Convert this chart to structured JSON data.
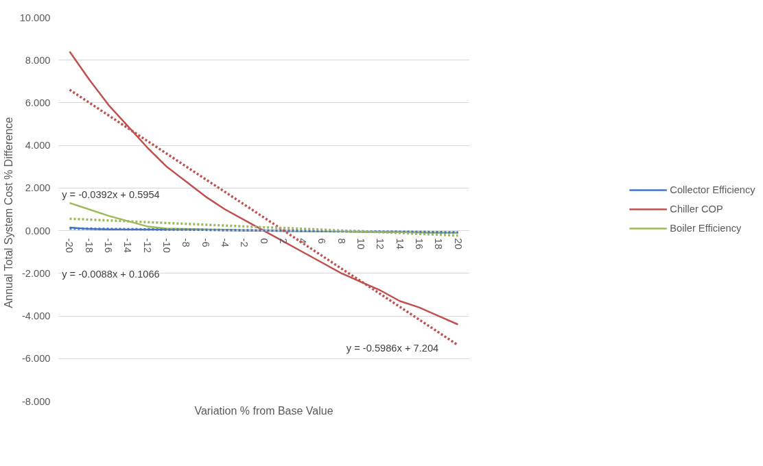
{
  "chart_data": {
    "type": "line",
    "xlabel": "Variation % from Base Value",
    "ylabel": "Annual Total System Cost  %  Difference",
    "categories": [
      "-20",
      "-18",
      "-16",
      "-14",
      "-12",
      "-10",
      "-8",
      "-6",
      "-4",
      "-2",
      "0",
      "2",
      "4",
      "6",
      "8",
      "10",
      "12",
      "14",
      "16",
      "18",
      "20"
    ],
    "series": [
      {
        "name": "Collector Efficiency",
        "color": "#4472c4",
        "values": [
          0.15,
          0.08,
          0.06,
          0.05,
          0.05,
          0.04,
          0.04,
          0.03,
          0.02,
          0.01,
          0.0,
          -0.01,
          -0.02,
          -0.03,
          -0.04,
          -0.05,
          -0.06,
          -0.07,
          -0.08,
          -0.09,
          -0.1
        ]
      },
      {
        "name": "Chiller COP",
        "color": "#c0504d",
        "values": [
          8.4,
          7.1,
          5.9,
          4.9,
          3.9,
          3.0,
          2.3,
          1.6,
          1.0,
          0.5,
          0.0,
          -0.5,
          -1.0,
          -1.5,
          -2.0,
          -2.4,
          -2.8,
          -3.3,
          -3.6,
          -4.0,
          -4.4
        ]
      },
      {
        "name": "Boiler Efficiency",
        "color": "#9bbb59",
        "values": [
          1.3,
          1.0,
          0.7,
          0.45,
          0.2,
          0.1,
          0.08,
          0.06,
          0.04,
          0.02,
          0.0,
          -0.01,
          -0.02,
          -0.03,
          -0.04,
          -0.05,
          -0.06,
          -0.07,
          -0.08,
          -0.09,
          -0.1
        ]
      },
      {
        "color": "#4472c4",
        "line_style": "dotted",
        "values": [
          0.1,
          0.09,
          0.08,
          0.07,
          0.06,
          0.05,
          0.05,
          0.04,
          0.03,
          0.02,
          0.01,
          0.0,
          -0.01,
          -0.02,
          -0.03,
          -0.03,
          -0.04,
          -0.05,
          -0.06,
          -0.07,
          -0.08
        ]
      },
      {
        "color": "#c0504d",
        "line_style": "dotted",
        "values": [
          6.61,
          6.01,
          5.41,
          4.81,
          4.21,
          3.61,
          3.01,
          2.41,
          1.82,
          1.22,
          0.62,
          0.02,
          -0.58,
          -1.18,
          -1.78,
          -2.37,
          -2.97,
          -3.57,
          -4.17,
          -4.77,
          -5.37
        ]
      },
      {
        "color": "#9bbb59",
        "line_style": "dotted",
        "values": [
          0.56,
          0.52,
          0.48,
          0.44,
          0.4,
          0.36,
          0.32,
          0.28,
          0.24,
          0.2,
          0.16,
          0.13,
          0.09,
          0.05,
          0.01,
          -0.03,
          -0.07,
          -0.11,
          -0.15,
          -0.19,
          -0.23
        ]
      }
    ],
    "annotations": [
      "y = -0.0392x + 0.5954",
      "y = -0.0088x + 0.1066",
      "y = -0.5986x + 7.204"
    ],
    "ylim": [
      -8,
      10
    ],
    "yticks": [
      {
        "value": -8,
        "label": "-8.000"
      },
      {
        "value": -6,
        "label": "-6.000"
      },
      {
        "value": -4,
        "label": "-4.000"
      },
      {
        "value": -2,
        "label": "-2.000"
      },
      {
        "value": 0,
        "label": "0.000"
      },
      {
        "value": 2,
        "label": "2.000"
      },
      {
        "value": 4,
        "label": "4.000"
      },
      {
        "value": 6,
        "label": "6.000"
      },
      {
        "value": 8,
        "label": "8.000"
      },
      {
        "value": 10,
        "label": "10.000"
      }
    ],
    "grid": "y",
    "legend": "right",
    "line_style": "solid",
    "marker": "none"
  }
}
